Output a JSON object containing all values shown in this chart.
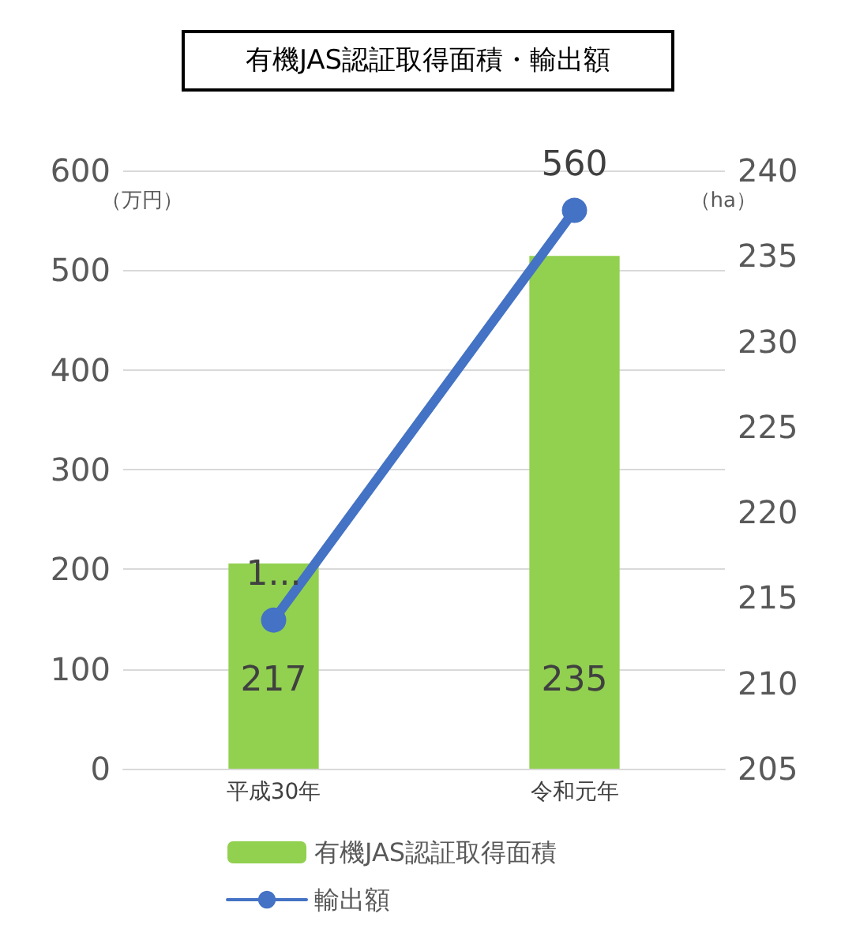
{
  "chart_data": {
    "type": "bar",
    "title": "有機JAS認証取得面積・輸出額",
    "ylabel": "（万円）",
    "y2label": "（ha）",
    "categories": [
      "平成30年",
      "令和元年"
    ],
    "series": [
      {
        "name": "有機JAS認証取得面積",
        "axis": "y2",
        "color": "#92d050",
        "values": [
          217,
          235
        ],
        "value_labels": [
          "217",
          "235"
        ]
      },
      {
        "name": "輸出額",
        "type": "line",
        "axis": "y",
        "color": "#4472c4",
        "values": [
          149,
          560
        ],
        "value_labels": [
          "1...",
          "560"
        ],
        "marker": "circle"
      }
    ],
    "ylim": [
      0,
      600
    ],
    "yticks": [
      0,
      100,
      200,
      300,
      400,
      500,
      600
    ],
    "y2lim": [
      205,
      240
    ],
    "y2ticks": [
      205,
      210,
      215,
      220,
      225,
      230,
      235,
      240
    ],
    "grid": "y",
    "legend": "bottom"
  }
}
